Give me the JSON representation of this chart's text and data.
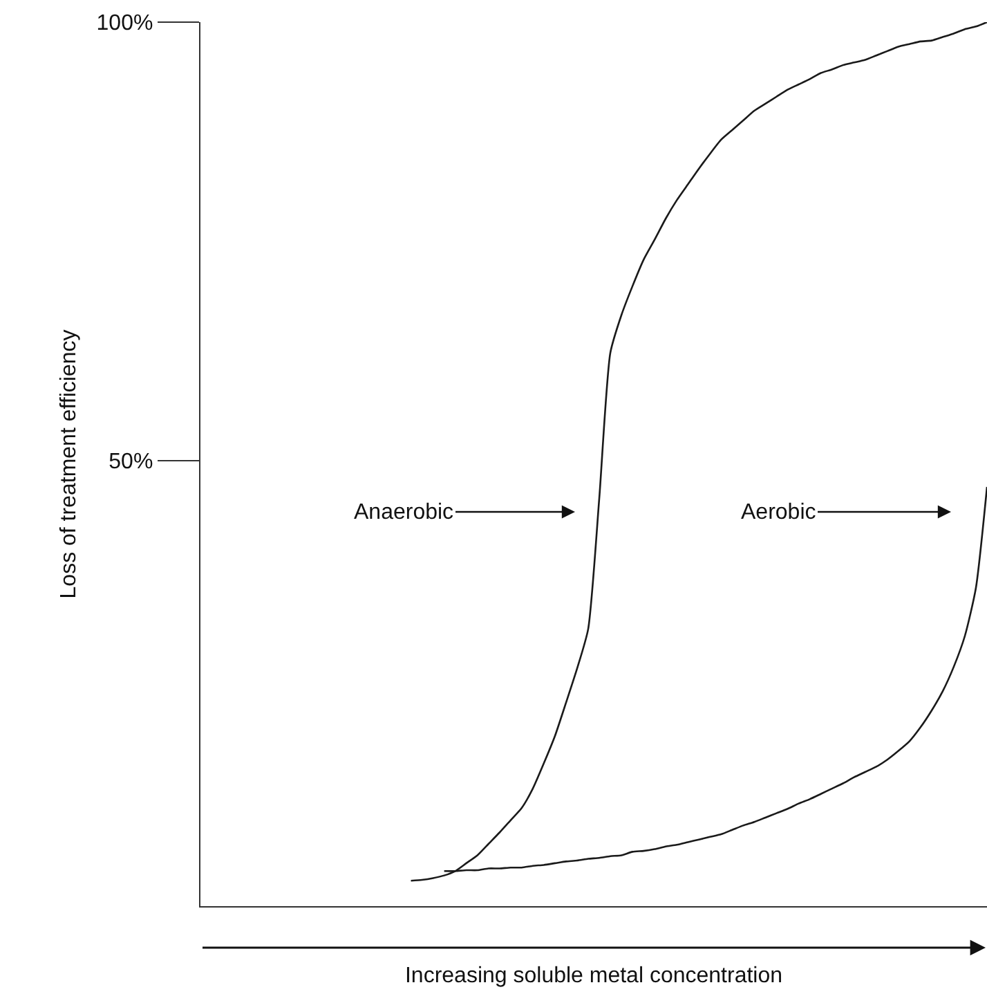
{
  "chart_data": {
    "type": "line",
    "xlabel": "Increasing soluble metal concentration",
    "ylabel": "Loss of treatment efficiency",
    "categories": [
      null,
      null,
      null,
      null,
      null,
      null,
      null,
      null,
      null,
      null,
      null,
      null,
      null,
      null,
      null,
      null,
      null,
      null,
      null,
      null,
      null,
      null,
      null,
      null,
      null,
      null,
      null,
      null,
      null,
      null,
      null,
      null,
      null,
      null,
      null,
      null,
      null,
      null,
      null,
      null,
      null,
      null,
      null,
      null,
      null,
      null,
      null,
      null,
      null,
      null,
      null,
      null,
      null,
      null,
      null,
      null,
      null,
      null,
      null,
      null,
      null,
      null,
      null,
      null,
      null,
      null,
      null,
      null,
      null,
      null,
      null,
      null
    ],
    "series": [
      {
        "color": "#1a1a1a",
        "values": [
          null,
          null,
          null,
          null,
          null,
          null,
          null,
          null,
          null,
          null,
          null,
          null,
          null,
          null,
          null,
          null,
          null,
          null,
          null,
          2.1,
          2.2,
          2.4,
          2.7,
          3.2,
          4.1,
          5.0,
          6.3,
          7.6,
          9.0,
          10.4,
          12.6,
          15.5,
          18.6,
          22.4,
          26.3,
          30.8,
          45.7,
          62.3,
          66.6,
          69.9,
          72.9,
          75.2,
          77.6,
          79.7,
          81.5,
          83.3,
          85.0,
          86.6,
          87.7,
          88.8,
          89.9,
          90.7,
          91.5,
          92.3,
          92.9,
          93.5,
          94.2,
          94.6,
          95.1,
          95.4,
          95.7,
          96.2,
          96.7,
          97.2,
          97.5,
          97.8,
          97.9,
          98.3,
          98.7,
          99.2,
          99.5,
          100
        ]
      },
      {
        "color": "#1a1a1a",
        "values": [
          null,
          null,
          null,
          null,
          null,
          null,
          null,
          null,
          null,
          null,
          null,
          null,
          null,
          null,
          null,
          null,
          null,
          null,
          null,
          null,
          null,
          null,
          3.2,
          3.2,
          3.3,
          3.3,
          3.5,
          3.5,
          3.6,
          3.6,
          3.8,
          3.9,
          4.1,
          4.3,
          4.4,
          4.6,
          4.7,
          4.9,
          5.0,
          5.4,
          5.5,
          5.7,
          6.0,
          6.2,
          6.5,
          6.8,
          7.1,
          7.4,
          7.9,
          8.4,
          8.8,
          9.3,
          9.8,
          10.3,
          10.9,
          11.4,
          12.0,
          12.6,
          13.2,
          13.9,
          14.5,
          15.1,
          15.9,
          16.9,
          18.0,
          19.6,
          21.5,
          23.7,
          26.5,
          30.0,
          35.5,
          47.0
        ]
      }
    ],
    "ylim": [
      -0.8,
      100
    ],
    "yticks": [
      {
        "value": 50,
        "label": "50%"
      },
      {
        "value": 100,
        "label": "100%"
      }
    ],
    "annotations": [
      "Anaerobic",
      "Aerobic"
    ],
    "grid": false,
    "marker": "none",
    "line_style": "solid"
  }
}
